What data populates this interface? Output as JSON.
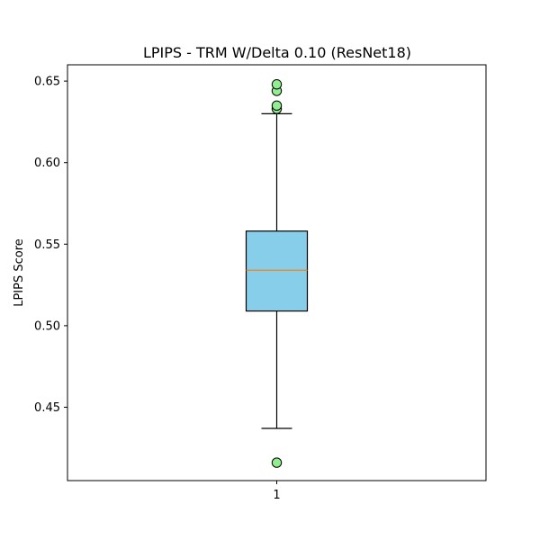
{
  "chart_data": {
    "type": "box",
    "title": "LPIPS - TRM W/Delta 0.10 (ResNet18)",
    "xlabel": "",
    "ylabel": "LPIPS Score",
    "ylim": [
      0.405,
      0.66
    ],
    "yticks": [
      0.45,
      0.5,
      0.55,
      0.6,
      0.65
    ],
    "categories": [
      "1"
    ],
    "boxes": [
      {
        "category": "1",
        "whisker_low": 0.437,
        "q1": 0.509,
        "median": 0.534,
        "q3": 0.558,
        "whisker_high": 0.63,
        "outliers": [
          0.416,
          0.633,
          0.635,
          0.644,
          0.648
        ]
      }
    ],
    "colors": {
      "box_fill": "#87ceeb",
      "median_line": "#ff7f0e",
      "outlier_fill": "#90ee90",
      "edge": "#000000"
    },
    "grid": false,
    "legend": "none"
  }
}
